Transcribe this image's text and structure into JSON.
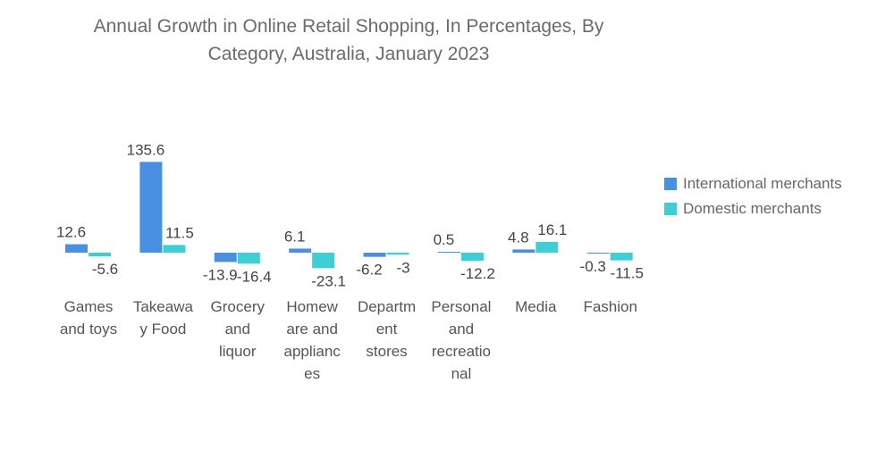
{
  "title_lines": [
    "Annual Growth in Online Retail Shopping, In Percentages, By",
    "Category, Australia, January 2023"
  ],
  "colors": {
    "international": "#4a90e2",
    "domestic": "#3ecfd6"
  },
  "chart_data": {
    "type": "bar",
    "title": "Annual Growth in Online Retail Shopping, In Percentages, By Category, Australia, January 2023",
    "category_label_lines": [
      [
        "Games",
        "and toys"
      ],
      [
        "Takeawa",
        "y Food"
      ],
      [
        "Grocery",
        "and",
        "liquor"
      ],
      [
        "Homew",
        "are and",
        "applianc",
        "es"
      ],
      [
        "Departm",
        "ent",
        "stores"
      ],
      [
        "Personal",
        "and",
        "recreatio",
        "nal"
      ],
      [
        "Media"
      ],
      [
        "Fashion"
      ]
    ],
    "categories": [
      "Games and toys",
      "Takeaway Food",
      "Grocery and liquor",
      "Homeware and appliances",
      "Department stores",
      "Personal and recreational",
      "Media",
      "Fashion"
    ],
    "series": [
      {
        "name": "International merchants",
        "values": [
          12.6,
          135.6,
          -13.9,
          6.1,
          -6.2,
          0.5,
          4.8,
          -0.3
        ],
        "labels": [
          "12.6",
          "135.6",
          "-13.9",
          "6.1",
          "-6.2",
          "0.5",
          "4.8",
          "-0.3"
        ]
      },
      {
        "name": "Domestic merchants",
        "values": [
          -5.6,
          11.5,
          -16.4,
          -23.1,
          -3,
          -12.2,
          16.1,
          -11.5
        ],
        "labels": [
          "-5.6",
          "11.5",
          "-16.4",
          "-23.1",
          "-3",
          "-12.2",
          "16.1",
          "-11.5"
        ]
      }
    ],
    "legend_position": "right",
    "grid": false
  }
}
